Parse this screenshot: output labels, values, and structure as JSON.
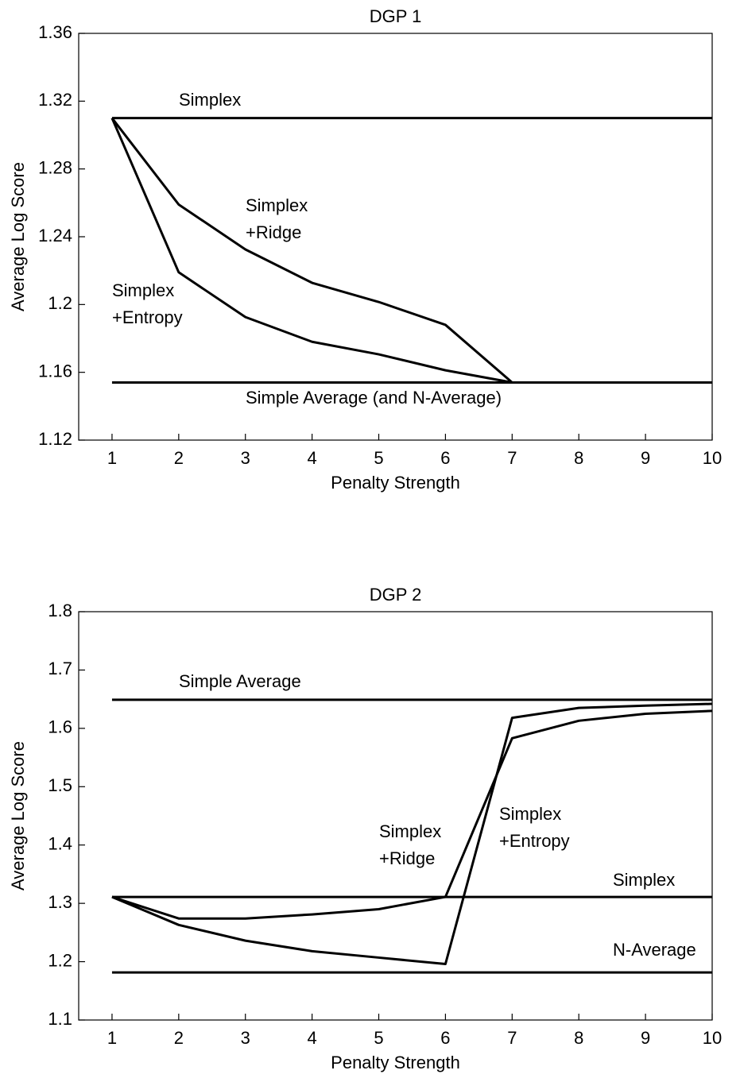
{
  "chart_data": [
    {
      "type": "line",
      "title": "DGP 1",
      "xlabel": "Penalty Strength",
      "ylabel": "Average Log Score",
      "x": [
        1,
        2,
        3,
        4,
        5,
        6,
        7,
        8,
        9,
        10
      ],
      "xlim": [
        0.5,
        10
      ],
      "xticks": [
        1,
        2,
        3,
        4,
        5,
        6,
        7,
        8,
        9,
        10
      ],
      "ylim": [
        1.12,
        1.36
      ],
      "yticks": [
        1.12,
        1.16,
        1.2,
        1.24,
        1.28,
        1.32,
        1.36
      ],
      "series": [
        {
          "color": "#000000",
          "values": [
            1.31,
            1.31,
            1.31,
            1.31,
            1.31,
            1.31,
            1.31,
            1.31,
            1.31,
            1.31
          ]
        },
        {
          "color": "#000000",
          "values": [
            1.154,
            1.154,
            1.154,
            1.154,
            1.154,
            1.154,
            1.154,
            1.154,
            1.154,
            1.154
          ]
        },
        {
          "color": "#000000",
          "values": [
            1.31,
            1.259,
            1.2325,
            1.2128,
            1.2015,
            1.188,
            1.154,
            1.154,
            1.154,
            1.154
          ]
        },
        {
          "color": "#000000",
          "values": [
            1.31,
            1.219,
            1.1926,
            1.178,
            1.1706,
            1.1612,
            1.154,
            1.154,
            1.154,
            1.154
          ]
        }
      ],
      "annotations": [
        [
          "Simplex"
        ],
        [
          "Simplex",
          "+Ridge"
        ],
        [
          "Simplex",
          "+Entropy"
        ],
        [
          "Simple Average (and N-Average)"
        ]
      ]
    },
    {
      "type": "line",
      "title": "DGP 2",
      "xlabel": "Penalty Strength",
      "ylabel": "Average Log Score",
      "x": [
        1,
        2,
        3,
        4,
        5,
        6,
        7,
        8,
        9,
        10
      ],
      "xlim": [
        0.5,
        10
      ],
      "xticks": [
        1,
        2,
        3,
        4,
        5,
        6,
        7,
        8,
        9,
        10
      ],
      "ylim": [
        1.1,
        1.8
      ],
      "yticks": [
        1.1,
        1.2,
        1.3,
        1.4,
        1.5,
        1.6,
        1.7,
        1.8
      ],
      "series": [
        {
          "color": "#000000",
          "values": [
            1.649,
            1.649,
            1.649,
            1.649,
            1.649,
            1.649,
            1.649,
            1.649,
            1.649,
            1.649
          ]
        },
        {
          "color": "#000000",
          "values": [
            1.311,
            1.311,
            1.311,
            1.311,
            1.311,
            1.311,
            1.311,
            1.311,
            1.311,
            1.311
          ]
        },
        {
          "color": "#000000",
          "values": [
            1.1815,
            1.1815,
            1.1815,
            1.1815,
            1.1815,
            1.1815,
            1.1815,
            1.1815,
            1.1815,
            1.1815
          ]
        },
        {
          "color": "#000000",
          "values": [
            1.311,
            1.274,
            1.274,
            1.281,
            1.29,
            1.311,
            1.583,
            1.613,
            1.625,
            1.63
          ]
        },
        {
          "color": "#000000",
          "values": [
            1.311,
            1.263,
            1.236,
            1.218,
            1.207,
            1.196,
            1.618,
            1.635,
            1.639,
            1.642
          ]
        }
      ],
      "annotations": [
        [
          "Simple Average"
        ],
        [
          "Simplex",
          "+Ridge"
        ],
        [
          "Simplex",
          "+Entropy"
        ],
        [
          "Simplex"
        ],
        [
          "N-Average"
        ]
      ]
    }
  ]
}
